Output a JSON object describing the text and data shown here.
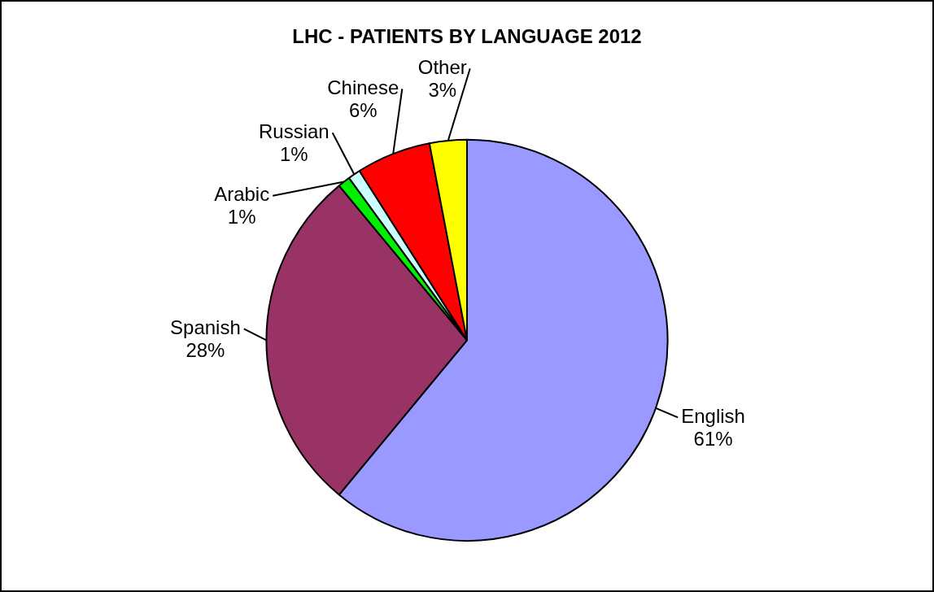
{
  "chart_data": {
    "type": "pie",
    "title": "LHC - PATIENTS BY LANGUAGE 2012",
    "categories": [
      "English",
      "Spanish",
      "Arabic",
      "Russian",
      "Chinese",
      "Other"
    ],
    "values": [
      61,
      28,
      1,
      1,
      6,
      3
    ],
    "colors": [
      "#9999ff",
      "#993366",
      "#00ee00",
      "#ccffff",
      "#ff0000",
      "#ffff00"
    ],
    "value_labels": [
      "61%",
      "28%",
      "1%",
      "1%",
      "6%",
      "3%"
    ],
    "legend": false
  }
}
